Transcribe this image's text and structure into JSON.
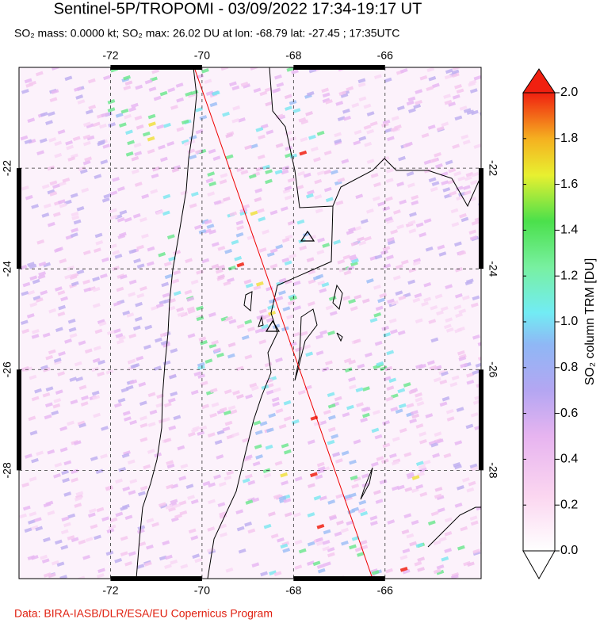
{
  "title": "Sentinel-5P/TROPOMI - 03/09/2022 17:34-19:17 UT",
  "subtitle": "SO₂ mass: 0.0000 kt; SO₂ max: 26.02 DU at lon: -68.79 lat: -27.45 ; 17:35UTC",
  "map": {
    "xlim": [
      -74,
      -63.9
    ],
    "ylim": [
      -20,
      -30.15
    ],
    "xticks": [
      -72,
      -70,
      -68,
      -66
    ],
    "yticks": [
      -22,
      -24,
      -26,
      -28
    ],
    "grid": true
  },
  "colorbar": {
    "label": "SO₂ column TRM [DU]",
    "lim": [
      0,
      2
    ],
    "ticks": [
      {
        "value": 0,
        "label": "0.0"
      },
      {
        "value": 0.2,
        "label": "0.2"
      },
      {
        "value": 0.4,
        "label": "0.4"
      },
      {
        "value": 0.6,
        "label": "0.6"
      },
      {
        "value": 0.8,
        "label": "0.8"
      },
      {
        "value": 1,
        "label": "1.0"
      },
      {
        "value": 1.2,
        "label": "1.2"
      },
      {
        "value": 1.4,
        "label": "1.4"
      },
      {
        "value": 1.6,
        "label": "1.6"
      },
      {
        "value": 1.8,
        "label": "1.8"
      },
      {
        "value": 2,
        "label": "2.0"
      }
    ]
  },
  "credit": "Data: BIRA-IASB/DLR/ESA/EU Copernicus Program"
}
